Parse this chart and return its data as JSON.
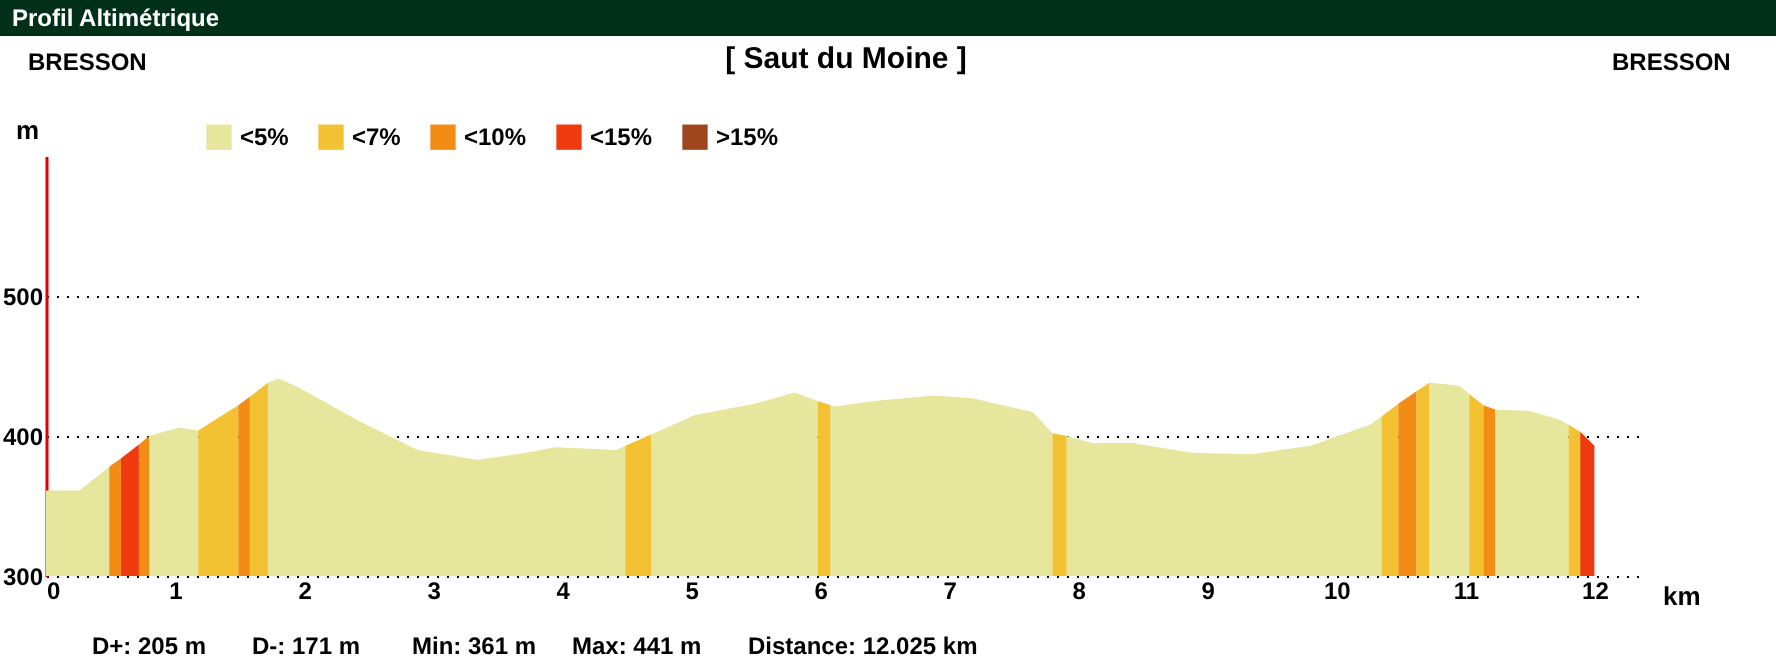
{
  "chart_data": {
    "type": "area",
    "title": "[ Saut du Moine ]",
    "subtitle": "Profil Altimétrique",
    "xlabel": "km",
    "ylabel": "m",
    "annotations": [
      "BRESSON",
      "BRESSON",
      "D+: 205 m",
      "D-: 171 m",
      "Min: 361 m",
      "Max: 441 m",
      "Distance: 12.025 km"
    ],
    "xlim": [
      0,
      12.4
    ],
    "xticks": [
      0,
      1,
      2,
      3,
      4,
      5,
      6,
      7,
      8,
      9,
      10,
      11,
      12
    ],
    "ylim": [
      300,
      600
    ],
    "yticks": [
      300,
      400,
      500
    ],
    "grid": "y",
    "legend": "top left",
    "series": [
      {
        "name": "<5%",
        "color": "#e6e69c",
        "x": [
          0,
          0.26,
          0.49,
          0.6,
          0.8,
          1.03,
          1.18,
          1.3,
          1.72,
          1.8,
          1.95,
          2.42,
          2.88,
          3.34,
          3.65,
          3.95,
          4.42,
          4.49,
          4.6,
          4.69,
          5.03,
          5.49,
          5.8,
          5.95,
          5.98,
          6.0,
          6.08,
          6.11,
          6.42,
          6.88,
          7.18,
          7.65,
          7.8,
          7.85,
          7.91,
          8.11,
          8.42,
          8.88,
          9.34,
          9.8,
          10.26,
          10.35,
          10.5,
          10.72,
          10.95,
          11.03,
          11.1,
          11.23,
          11.49,
          11.72,
          11.8
        ],
        "values": [
          361,
          361,
          378,
          null,
          400,
          406,
          404,
          null,
          438,
          441,
          435,
          411,
          390,
          383,
          387,
          392,
          390,
          393,
          null,
          401,
          415,
          423,
          431,
          426,
          425,
          null,
          422,
          421,
          425,
          429,
          427,
          417,
          402,
          null,
          400,
          395,
          395,
          388,
          387,
          393,
          408,
          414,
          null,
          438,
          436,
          430,
          null,
          419,
          418,
          412,
          408
        ]
      },
      {
        "name": "<7%",
        "color": "#f2c232",
        "x": [
          1.18,
          1.49,
          1.5,
          1.58,
          1.72,
          2.0,
          4.49,
          4.69,
          5.0,
          5.98,
          6.08,
          7.0,
          7.8,
          7.91,
          9.0,
          10.35,
          10.48,
          10.55,
          10.62,
          10.72,
          10.9,
          11.03,
          11.14,
          11.5,
          11.8,
          11.89
        ],
        "values": [
          404,
          422,
          null,
          428,
          438,
          null,
          393,
          401,
          null,
          425,
          422,
          null,
          402,
          400,
          null,
          414,
          423,
          null,
          432,
          438,
          null,
          430,
          422,
          null,
          408,
          403
        ]
      },
      {
        "name": "<10%",
        "color": "#f28c14",
        "x": [
          0.49,
          0.58,
          0.6,
          0.72,
          0.8,
          1.0,
          1.49,
          1.58,
          2.0,
          10.48,
          10.62,
          10.9,
          11.14,
          11.23
        ],
        "values": [
          378,
          384,
          null,
          394,
          400,
          null,
          422,
          428,
          null,
          423,
          432,
          null,
          422,
          419
        ]
      },
      {
        "name": "<15%",
        "color": "#ee3a0c",
        "x": [
          0.58,
          0.72,
          1.0,
          11.89,
          12.0
        ],
        "values": [
          384,
          394,
          null,
          403,
          393
        ]
      },
      {
        "name": ">15%",
        "color": "#a0461e"
      }
    ]
  }
}
